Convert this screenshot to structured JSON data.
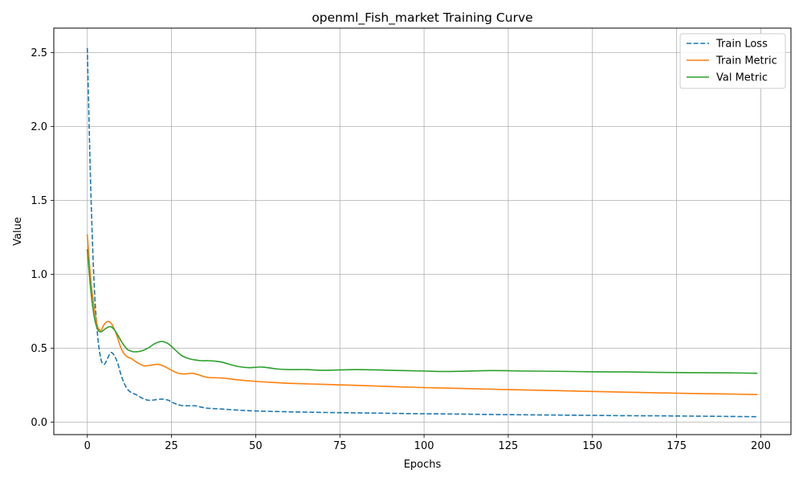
{
  "chart_data": {
    "type": "line",
    "title": "openml_Fish_market Training Curve",
    "xlabel": "Epochs",
    "ylabel": "Value",
    "xlim": [
      -9.95,
      208.95
    ],
    "ylim": [
      -0.085,
      2.665
    ],
    "xticks": [
      0,
      25,
      50,
      75,
      100,
      125,
      150,
      175,
      200
    ],
    "yticks": [
      0.0,
      0.5,
      1.0,
      1.5,
      2.0,
      2.5
    ],
    "xtick_labels": [
      "0",
      "25",
      "50",
      "75",
      "100",
      "125",
      "150",
      "175",
      "200"
    ],
    "ytick_labels": [
      "0.0",
      "0.5",
      "1.0",
      "1.5",
      "2.0",
      "2.5"
    ],
    "grid": true,
    "legend_position": "top-right",
    "series": [
      {
        "name": "Train Loss",
        "color": "#1f77b4",
        "style": "dashed",
        "x": [
          0,
          1,
          2,
          3,
          4,
          5,
          6,
          7,
          8,
          9,
          10,
          11,
          12,
          13,
          14,
          15,
          16,
          17,
          18,
          19,
          20,
          22,
          24,
          26,
          28,
          30,
          32,
          34,
          36,
          40,
          45,
          50,
          60,
          70,
          80,
          90,
          100,
          110,
          120,
          130,
          140,
          150,
          160,
          170,
          180,
          190,
          199
        ],
        "y": [
          2.53,
          1.6,
          0.95,
          0.6,
          0.43,
          0.39,
          0.43,
          0.47,
          0.45,
          0.4,
          0.32,
          0.26,
          0.22,
          0.2,
          0.19,
          0.18,
          0.165,
          0.155,
          0.148,
          0.147,
          0.15,
          0.155,
          0.148,
          0.125,
          0.112,
          0.11,
          0.11,
          0.1,
          0.093,
          0.088,
          0.08,
          0.075,
          0.069,
          0.065,
          0.062,
          0.059,
          0.056,
          0.054,
          0.051,
          0.049,
          0.047,
          0.045,
          0.043,
          0.042,
          0.04,
          0.038,
          0.036
        ]
      },
      {
        "name": "Train Metric",
        "color": "#ff7f0e",
        "style": "solid",
        "x": [
          0,
          1,
          2,
          3,
          4,
          5,
          6,
          7,
          8,
          9,
          10,
          11,
          12,
          13,
          15,
          17,
          19,
          21,
          23,
          25,
          27,
          29,
          31,
          33,
          35,
          37,
          40,
          45,
          50,
          55,
          60,
          70,
          80,
          90,
          100,
          110,
          120,
          130,
          140,
          150,
          160,
          170,
          180,
          190,
          199
        ],
        "y": [
          1.27,
          0.97,
          0.78,
          0.65,
          0.62,
          0.66,
          0.68,
          0.67,
          0.63,
          0.57,
          0.5,
          0.46,
          0.44,
          0.43,
          0.4,
          0.38,
          0.385,
          0.39,
          0.375,
          0.35,
          0.33,
          0.325,
          0.33,
          0.32,
          0.305,
          0.3,
          0.298,
          0.285,
          0.275,
          0.268,
          0.262,
          0.255,
          0.248,
          0.24,
          0.233,
          0.228,
          0.222,
          0.217,
          0.212,
          0.207,
          0.202,
          0.197,
          0.193,
          0.19,
          0.186
        ]
      },
      {
        "name": "Val Metric",
        "color": "#2ca02c",
        "style": "solid",
        "x": [
          0,
          1,
          2,
          3,
          4,
          5,
          6,
          7,
          8,
          9,
          10,
          11,
          12,
          13,
          14,
          16,
          18,
          20,
          22,
          24,
          26,
          28,
          30,
          32,
          34,
          36,
          38,
          40,
          42,
          45,
          48,
          52,
          56,
          60,
          65,
          70,
          80,
          90,
          100,
          107,
          120,
          130,
          140,
          150,
          160,
          170,
          180,
          190,
          199
        ],
        "y": [
          1.17,
          0.9,
          0.72,
          0.63,
          0.61,
          0.625,
          0.64,
          0.645,
          0.625,
          0.59,
          0.55,
          0.515,
          0.49,
          0.48,
          0.475,
          0.48,
          0.5,
          0.53,
          0.545,
          0.53,
          0.49,
          0.45,
          0.43,
          0.42,
          0.415,
          0.415,
          0.412,
          0.405,
          0.392,
          0.375,
          0.368,
          0.372,
          0.36,
          0.355,
          0.355,
          0.35,
          0.355,
          0.35,
          0.345,
          0.342,
          0.348,
          0.345,
          0.343,
          0.34,
          0.339,
          0.336,
          0.334,
          0.333,
          0.33
        ]
      }
    ]
  }
}
